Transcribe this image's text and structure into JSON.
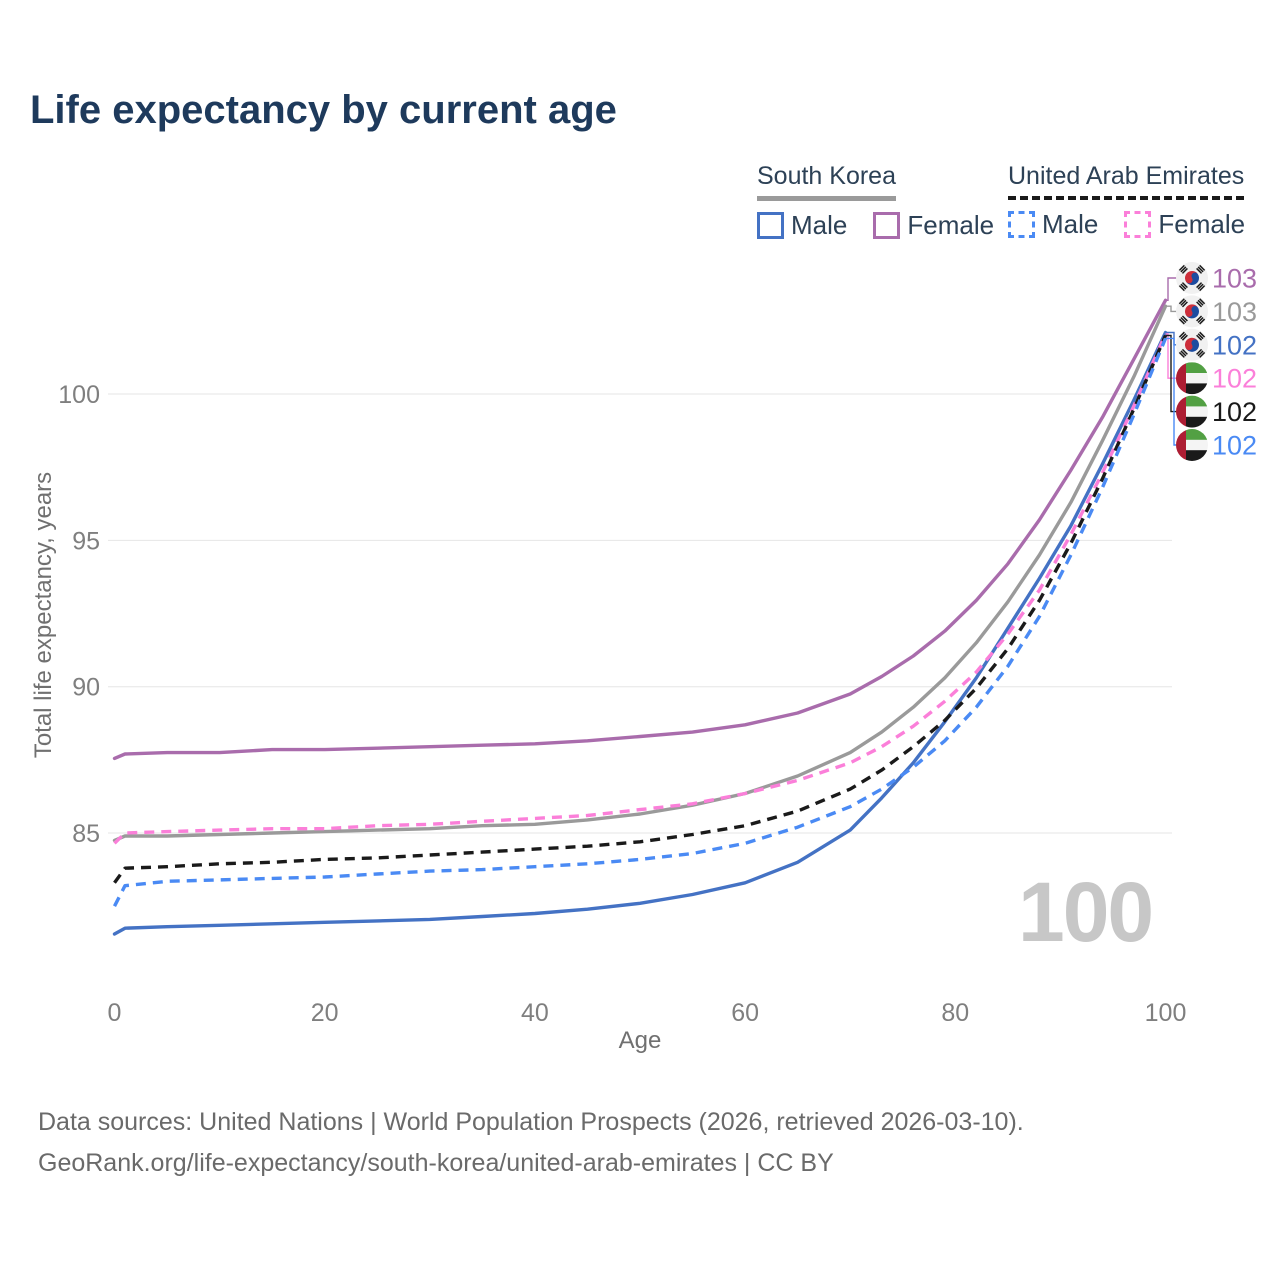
{
  "title": "Life expectancy by current age",
  "watermark": "100",
  "legend": {
    "groups": [
      {
        "name": "South Korea",
        "underline_color": "#9a9a9a",
        "underline_style": "solid",
        "items": [
          {
            "label": "Male",
            "color": "#4472c4",
            "dashed": false
          },
          {
            "label": "Female",
            "color": "#a96cac",
            "dashed": false
          }
        ]
      },
      {
        "name": "United Arab Emirates",
        "underline_color": "#1a1a1a",
        "underline_style": "dashed",
        "items": [
          {
            "label": "Male",
            "color": "#4a8af4",
            "dashed": true
          },
          {
            "label": "Female",
            "color": "#fb7fd9",
            "dashed": true
          }
        ]
      }
    ]
  },
  "chart_data": {
    "type": "line",
    "title": "Life expectancy by current age",
    "xlabel": "Age",
    "ylabel": "Total life expectancy, years",
    "x_ticks": [
      0,
      20,
      40,
      60,
      80,
      100
    ],
    "y_ticks": [
      85,
      90,
      95,
      100
    ],
    "xlim": [
      0,
      100
    ],
    "ylim": [
      81,
      104
    ],
    "grid": "horizontal",
    "legend_position": "top-right",
    "x": [
      0,
      1,
      5,
      10,
      15,
      20,
      25,
      30,
      35,
      40,
      45,
      50,
      55,
      60,
      65,
      70,
      73,
      76,
      79,
      82,
      85,
      88,
      91,
      94,
      97,
      100
    ],
    "series": [
      {
        "id": "south-korea-female",
        "name": "South Korea Female",
        "flag": "kr",
        "color": "#a96cac",
        "style": "solid",
        "end_label": "103",
        "values": [
          87.55,
          87.7,
          87.75,
          87.75,
          87.85,
          87.85,
          87.9,
          87.95,
          88.0,
          88.05,
          88.15,
          88.3,
          88.45,
          88.7,
          89.1,
          89.75,
          90.35,
          91.05,
          91.9,
          92.95,
          94.2,
          95.7,
          97.4,
          99.2,
          101.2,
          103.2
        ]
      },
      {
        "id": "south-korea-both",
        "name": "South Korea",
        "flag": "kr",
        "color": "#9a9a9a",
        "style": "solid",
        "end_label": "103",
        "values": [
          84.75,
          84.9,
          84.9,
          84.95,
          85.0,
          85.05,
          85.1,
          85.15,
          85.25,
          85.3,
          85.45,
          85.65,
          85.95,
          86.35,
          86.95,
          87.75,
          88.45,
          89.3,
          90.3,
          91.5,
          92.9,
          94.5,
          96.3,
          98.4,
          100.6,
          103.0
        ]
      },
      {
        "id": "south-korea-male",
        "name": "South Korea Male",
        "flag": "kr",
        "color": "#4472c4",
        "style": "solid",
        "end_label": "102",
        "values": [
          81.55,
          81.75,
          81.8,
          81.85,
          81.9,
          81.95,
          82.0,
          82.05,
          82.15,
          82.25,
          82.4,
          82.6,
          82.9,
          83.3,
          84.0,
          85.1,
          86.2,
          87.4,
          88.8,
          90.3,
          92.0,
          93.7,
          95.5,
          97.6,
          99.8,
          102.1
        ]
      },
      {
        "id": "uae-female",
        "name": "United Arab Emirates Female",
        "flag": "ae",
        "color": "#fb7fd9",
        "style": "dashed",
        "end_label": "102",
        "values": [
          84.65,
          85.0,
          85.05,
          85.1,
          85.15,
          85.15,
          85.25,
          85.3,
          85.4,
          85.5,
          85.6,
          85.8,
          86.0,
          86.35,
          86.8,
          87.4,
          87.95,
          88.65,
          89.5,
          90.5,
          91.8,
          93.3,
          95.2,
          97.3,
          99.6,
          102.05
        ]
      },
      {
        "id": "uae-both",
        "name": "United Arab Emirates",
        "flag": "ae",
        "color": "#1a1a1a",
        "style": "dashed",
        "end_label": "102",
        "values": [
          83.3,
          83.8,
          83.85,
          83.95,
          84.0,
          84.1,
          84.15,
          84.25,
          84.35,
          84.45,
          84.55,
          84.7,
          84.95,
          85.25,
          85.75,
          86.5,
          87.15,
          87.95,
          88.85,
          89.95,
          91.3,
          92.95,
          94.9,
          97.1,
          99.5,
          102.0
        ]
      },
      {
        "id": "uae-male",
        "name": "United Arab Emirates Male",
        "flag": "ae",
        "color": "#4a8af4",
        "style": "dashed",
        "end_label": "102",
        "values": [
          82.5,
          83.2,
          83.35,
          83.4,
          83.45,
          83.5,
          83.6,
          83.7,
          83.75,
          83.85,
          83.95,
          84.1,
          84.3,
          84.65,
          85.2,
          85.9,
          86.5,
          87.25,
          88.15,
          89.3,
          90.7,
          92.4,
          94.5,
          96.8,
          99.3,
          101.9
        ]
      }
    ]
  },
  "footer": {
    "line1": "Data sources: United Nations | World Population Prospects (2026, retrieved 2026-03-10).",
    "line2": "GeoRank.org/life-expectancy/south-korea/united-arab-emirates | CC BY"
  }
}
